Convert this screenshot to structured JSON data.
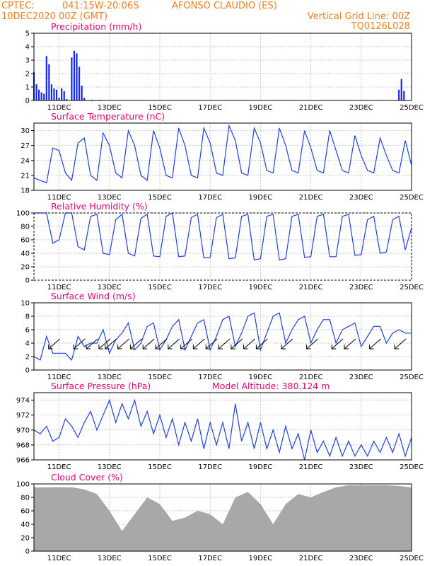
{
  "header": {
    "line1_left": "CPTEC:",
    "coords": "041:15W-20:06S",
    "station": "AFONSO CLAUDIO (ES)",
    "date": "10DEC2020 00Z (GMT)",
    "grid_note": "Vertical Grid Line: 00Z",
    "code": "TQ0126L028"
  },
  "x_labels": [
    "11DEC",
    "13DEC",
    "15DEC",
    "17DEC",
    "19DEC",
    "21DEC",
    "23DEC",
    "25DEC"
  ],
  "x_label_days": [
    11,
    13,
    15,
    17,
    19,
    21,
    23,
    25
  ],
  "x_range_days": [
    10,
    25
  ],
  "panels": [
    {
      "id": "precip",
      "title": "Precipitation (mm/h)",
      "yticks": [
        "0",
        "1",
        "2",
        "3",
        "4",
        "5"
      ],
      "ylim": [
        0,
        5
      ]
    },
    {
      "id": "temp",
      "title": "Surface Temperature (nC)",
      "yticks": [
        "18",
        "21",
        "24",
        "27",
        "30"
      ],
      "ylim": [
        18,
        31.5
      ]
    },
    {
      "id": "rh",
      "title": "Relative Humidity (%)",
      "yticks": [
        "0",
        "20",
        "40",
        "60",
        "80",
        "100"
      ],
      "ylim": [
        0,
        100
      ]
    },
    {
      "id": "wind",
      "title": "Surface Wind (m/s)",
      "yticks": [
        "0",
        "2",
        "4",
        "6",
        "8",
        "10"
      ],
      "ylim": [
        0,
        10
      ]
    },
    {
      "id": "pres",
      "title": "Surface Pressure (hPa)",
      "extra": "Model Altitude: 380.124 m",
      "yticks": [
        "966",
        "968",
        "970",
        "972",
        "974"
      ],
      "ylim": [
        966,
        975
      ]
    },
    {
      "id": "cloud",
      "title": "Cloud Cover (%)",
      "yticks": [
        "0",
        "20",
        "40",
        "60",
        "80",
        "100"
      ],
      "ylim": [
        0,
        100
      ]
    }
  ],
  "colors": {
    "header": "#f08020",
    "title": "#e8007a",
    "series": "#1f3fe0",
    "bars": "#1428e6",
    "cloud": "#a8a8a8"
  },
  "chart_data": [
    {
      "type": "bar",
      "title": "Precipitation (mm/h)",
      "x_unit": "day of Dec 2020",
      "x": [
        10.0,
        10.1,
        10.2,
        10.3,
        10.4,
        10.5,
        10.6,
        10.7,
        10.8,
        10.9,
        11.0,
        11.1,
        11.2,
        11.3,
        11.5,
        11.6,
        11.7,
        11.8,
        11.9,
        12.0,
        12.3,
        12.6,
        24.5,
        24.6,
        24.7
      ],
      "values": [
        2.1,
        1.2,
        0.8,
        0.6,
        0.5,
        3.3,
        2.7,
        1.2,
        0.9,
        0.8,
        0.2,
        0.9,
        0.7,
        0.1,
        3.2,
        3.7,
        3.5,
        2.5,
        1.1,
        0.2,
        0.05,
        0.05,
        0.8,
        1.6,
        0.7
      ],
      "ylim": [
        0,
        5
      ]
    },
    {
      "type": "line",
      "title": "Surface Temperature (nC)",
      "x_unit": "day of Dec 2020",
      "x": [
        10.0,
        10.5,
        10.75,
        11.0,
        11.25,
        11.5,
        11.75,
        12.0,
        12.25,
        12.5,
        12.75,
        13.0,
        13.25,
        13.5,
        13.75,
        14.0,
        14.25,
        14.5,
        14.75,
        15.0,
        15.25,
        15.5,
        15.75,
        16.0,
        16.25,
        16.5,
        16.75,
        17.0,
        17.25,
        17.5,
        17.75,
        18.0,
        18.25,
        18.5,
        18.75,
        19.0,
        19.25,
        19.5,
        19.75,
        20.0,
        20.25,
        20.5,
        20.75,
        21.0,
        21.25,
        21.5,
        21.75,
        22.0,
        22.25,
        22.5,
        22.75,
        23.0,
        23.25,
        23.5,
        23.75,
        24.0,
        24.25,
        24.5,
        24.75,
        25.0
      ],
      "values": [
        20.5,
        19.5,
        26.5,
        26.0,
        21.5,
        20.0,
        27.5,
        28.5,
        21.0,
        20.0,
        29.5,
        27.0,
        21.5,
        20.5,
        30.0,
        27.0,
        21.0,
        20.0,
        30.0,
        26.5,
        21.0,
        20.5,
        30.5,
        27.0,
        21.0,
        20.5,
        30.5,
        27.5,
        21.5,
        21.0,
        31.0,
        28.0,
        21.5,
        21.0,
        30.5,
        27.5,
        22.0,
        21.5,
        30.5,
        27.0,
        22.0,
        21.5,
        30.0,
        26.5,
        22.0,
        21.5,
        30.0,
        26.0,
        22.0,
        21.5,
        29.0,
        25.0,
        22.0,
        21.5,
        28.5,
        25.0,
        22.0,
        21.5,
        28.0,
        23.0
      ],
      "ylim": [
        18,
        31.5
      ]
    },
    {
      "type": "line",
      "title": "Relative Humidity (%)",
      "x_unit": "day of Dec 2020",
      "x": [
        10.0,
        10.25,
        10.5,
        10.75,
        11.0,
        11.25,
        11.5,
        11.75,
        12.0,
        12.25,
        12.5,
        12.75,
        13.0,
        13.25,
        13.5,
        13.75,
        14.0,
        14.25,
        14.5,
        14.75,
        15.0,
        15.25,
        15.5,
        15.75,
        16.0,
        16.25,
        16.5,
        16.75,
        17.0,
        17.25,
        17.5,
        17.75,
        18.0,
        18.25,
        18.5,
        18.75,
        19.0,
        19.25,
        19.5,
        19.75,
        20.0,
        20.25,
        20.5,
        20.75,
        21.0,
        21.25,
        21.5,
        21.75,
        22.0,
        22.25,
        22.5,
        22.75,
        23.0,
        23.25,
        23.5,
        23.75,
        24.0,
        24.25,
        24.5,
        24.75,
        25.0
      ],
      "values": [
        100,
        100,
        100,
        55,
        60,
        100,
        100,
        50,
        45,
        95,
        98,
        40,
        38,
        90,
        98,
        40,
        36,
        92,
        98,
        36,
        35,
        95,
        100,
        35,
        36,
        93,
        98,
        33,
        34,
        93,
        98,
        32,
        33,
        95,
        98,
        30,
        32,
        95,
        98,
        30,
        32,
        95,
        98,
        34,
        35,
        95,
        98,
        35,
        35,
        95,
        98,
        37,
        38,
        90,
        95,
        40,
        42,
        90,
        95,
        45,
        78
      ],
      "ylim": [
        0,
        100
      ]
    },
    {
      "type": "line",
      "title": "Surface Wind (m/s)",
      "x_unit": "day of Dec 2020",
      "x": [
        10.0,
        10.25,
        10.5,
        10.75,
        11.0,
        11.25,
        11.5,
        11.75,
        12.0,
        12.25,
        12.5,
        12.75,
        13.0,
        13.25,
        13.5,
        13.75,
        14.0,
        14.25,
        14.5,
        14.75,
        15.0,
        15.25,
        15.5,
        15.75,
        16.0,
        16.25,
        16.5,
        16.75,
        17.0,
        17.25,
        17.5,
        17.75,
        18.0,
        18.25,
        18.5,
        18.75,
        19.0,
        19.25,
        19.5,
        19.75,
        20.0,
        20.25,
        20.5,
        20.75,
        21.0,
        21.25,
        21.5,
        21.75,
        22.0,
        22.25,
        22.5,
        22.75,
        23.0,
        23.25,
        23.5,
        23.75,
        24.0,
        24.25,
        24.5,
        24.75,
        25.0
      ],
      "values": [
        2.0,
        1.5,
        5.0,
        2.5,
        2.5,
        2.5,
        1.5,
        5.0,
        3.5,
        4.0,
        4.0,
        6.0,
        2.5,
        4.5,
        5.5,
        7.0,
        3.0,
        4.0,
        6.5,
        7.0,
        3.0,
        4.5,
        6.5,
        7.5,
        3.0,
        5.0,
        7.0,
        7.5,
        3.0,
        5.0,
        7.5,
        8.0,
        3.5,
        5.5,
        8.0,
        8.5,
        3.0,
        5.5,
        8.0,
        8.5,
        4.0,
        6.0,
        7.5,
        8.0,
        4.0,
        6.0,
        7.5,
        7.5,
        4.0,
        6.0,
        6.5,
        7.0,
        3.5,
        5.0,
        6.5,
        6.5,
        4.0,
        5.5,
        6.0,
        5.5,
        5.5
      ],
      "arrows_x": [
        10.75,
        11.75,
        12.25,
        12.75,
        13.0,
        13.5,
        14.0,
        14.5,
        15.0,
        15.5,
        16.0,
        16.5,
        17.0,
        17.5,
        18.0,
        18.5,
        19.0,
        20.0,
        21.0,
        22.0,
        22.5,
        23.5,
        24.5
      ],
      "ylim": [
        0,
        10
      ]
    },
    {
      "type": "line",
      "title": "Surface Pressure (hPa)",
      "x_unit": "day of Dec 2020",
      "x": [
        10.0,
        10.25,
        10.5,
        10.75,
        11.0,
        11.25,
        11.5,
        11.75,
        12.0,
        12.25,
        12.5,
        12.75,
        13.0,
        13.25,
        13.5,
        13.75,
        14.0,
        14.25,
        14.5,
        14.75,
        15.0,
        15.25,
        15.5,
        15.75,
        16.0,
        16.25,
        16.5,
        16.75,
        17.0,
        17.25,
        17.5,
        17.75,
        18.0,
        18.25,
        18.5,
        18.75,
        19.0,
        19.25,
        19.5,
        19.75,
        20.0,
        20.25,
        20.5,
        20.75,
        21.0,
        21.25,
        21.5,
        21.75,
        22.0,
        22.25,
        22.5,
        22.75,
        23.0,
        23.25,
        23.5,
        23.75,
        24.0,
        24.25,
        24.5,
        24.75,
        25.0
      ],
      "values": [
        970.0,
        969.5,
        970.5,
        968.5,
        969.0,
        971.5,
        970.5,
        969.0,
        971.0,
        972.5,
        970.0,
        972.0,
        974.0,
        971.0,
        973.5,
        971.5,
        974.0,
        970.5,
        972.5,
        969.5,
        972.0,
        969.0,
        971.5,
        968.0,
        971.0,
        968.5,
        971.5,
        967.5,
        971.0,
        968.0,
        971.0,
        967.5,
        973.5,
        968.5,
        971.0,
        967.5,
        971.0,
        967.5,
        970.0,
        967.0,
        970.5,
        967.5,
        969.5,
        966.0,
        970.0,
        967.0,
        968.5,
        966.5,
        969.0,
        966.5,
        968.5,
        966.5,
        968.0,
        966.5,
        968.5,
        967.0,
        969.0,
        967.0,
        969.5,
        966.5,
        969.0
      ],
      "ylim": [
        966,
        975
      ]
    },
    {
      "type": "area",
      "title": "Cloud Cover (%)",
      "x_unit": "day of Dec 2020",
      "x": [
        10.0,
        10.5,
        11.0,
        11.5,
        12.0,
        12.5,
        13.0,
        13.5,
        14.0,
        14.5,
        15.0,
        15.5,
        16.0,
        16.5,
        17.0,
        17.5,
        18.0,
        18.5,
        19.0,
        19.5,
        20.0,
        20.5,
        21.0,
        21.5,
        22.0,
        22.5,
        23.0,
        23.5,
        24.0,
        24.5,
        25.0
      ],
      "values": [
        95,
        95,
        95,
        95,
        92,
        85,
        60,
        30,
        55,
        80,
        70,
        45,
        50,
        60,
        55,
        40,
        80,
        88,
        70,
        40,
        70,
        85,
        80,
        88,
        95,
        98,
        98,
        98,
        98,
        97,
        95
      ],
      "ylim": [
        0,
        100
      ]
    }
  ]
}
